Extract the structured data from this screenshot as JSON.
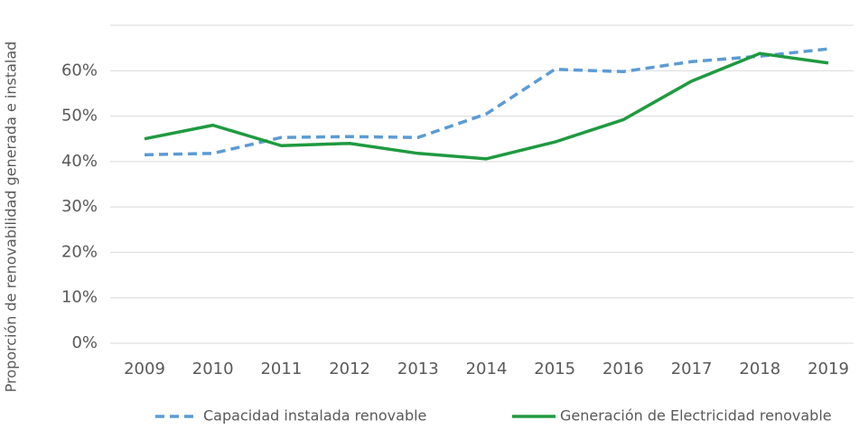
{
  "chart_data": {
    "type": "line",
    "y_label": "Proporción de renovabilidad generada e instalad",
    "categories": [
      "2009",
      "2010",
      "2011",
      "2012",
      "2013",
      "2014",
      "2015",
      "2016",
      "2017",
      "2018",
      "2019"
    ],
    "series": [
      {
        "name": "Capacidad instalada renovable",
        "color": "#5b9bd5",
        "dash": true,
        "values": [
          41.5,
          41.8,
          45.3,
          45.5,
          45.3,
          50.5,
          60.3,
          59.8,
          62,
          63.2,
          64.8
        ]
      },
      {
        "name": "Generación de Electricidad renovable",
        "color": "#1f9a40",
        "dash": false,
        "values": [
          45,
          48,
          43.5,
          44,
          41.8,
          40.6,
          44.3,
          49.2,
          57.7,
          63.8,
          61.7
        ]
      }
    ],
    "ylim": [
      0,
      70
    ],
    "yticks": [
      {
        "value": 0,
        "label": "0%"
      },
      {
        "value": 10,
        "label": "10%"
      },
      {
        "value": 20,
        "label": "20%"
      },
      {
        "value": 30,
        "label": "30%"
      },
      {
        "value": 40,
        "label": "40%"
      },
      {
        "value": 50,
        "label": "50%"
      },
      {
        "value": 60,
        "label": "60%"
      }
    ],
    "grid": true,
    "legend": "bottom"
  }
}
